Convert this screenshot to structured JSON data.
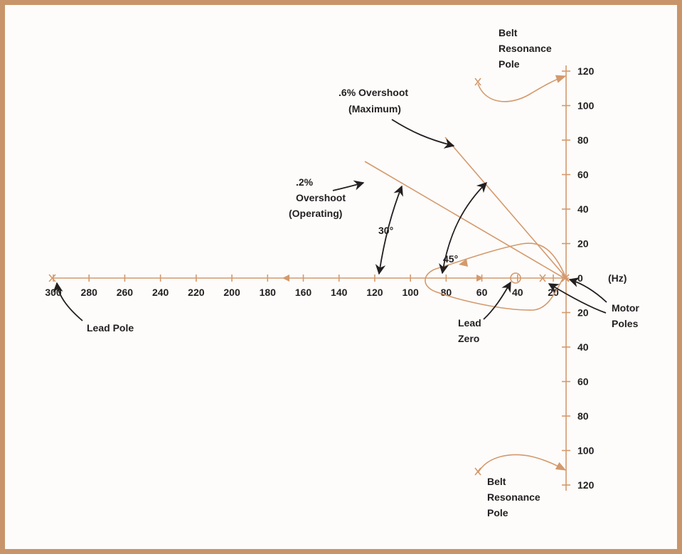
{
  "chart_data": {
    "type": "root-locus",
    "x_unit": "(Hz)",
    "real_axis_ticks": [
      "300",
      "280",
      "260",
      "240",
      "220",
      "200",
      "180",
      "160",
      "140",
      "120",
      "100",
      "80",
      "60",
      "40",
      "20"
    ],
    "imag_axis_ticks_upper": [
      "120",
      "100",
      "80",
      "60",
      "40",
      "20"
    ],
    "origin_tick": "0",
    "imag_axis_ticks_lower": [
      "20",
      "40",
      "60",
      "80",
      "100",
      "120"
    ],
    "annotations": {
      "belt_top": [
        "Belt",
        "Resonance",
        "Pole"
      ],
      "belt_bottom": [
        "Belt",
        "Resonance",
        "Pole"
      ],
      "overshoot_max": [
        ".6% Overshoot",
        "(Maximum)"
      ],
      "overshoot_op": [
        ".2%",
        "Overshoot",
        "(Operating)"
      ],
      "angle_30": "30°",
      "angle_45": "45°",
      "lead_pole": "Lead Pole",
      "lead_zero": [
        "Lead",
        "Zero"
      ],
      "motor_poles": [
        "Motor",
        "Poles"
      ]
    },
    "colors": {
      "locus": "#d4996c",
      "frame": "#c8956a",
      "text": "#231f20"
    }
  }
}
